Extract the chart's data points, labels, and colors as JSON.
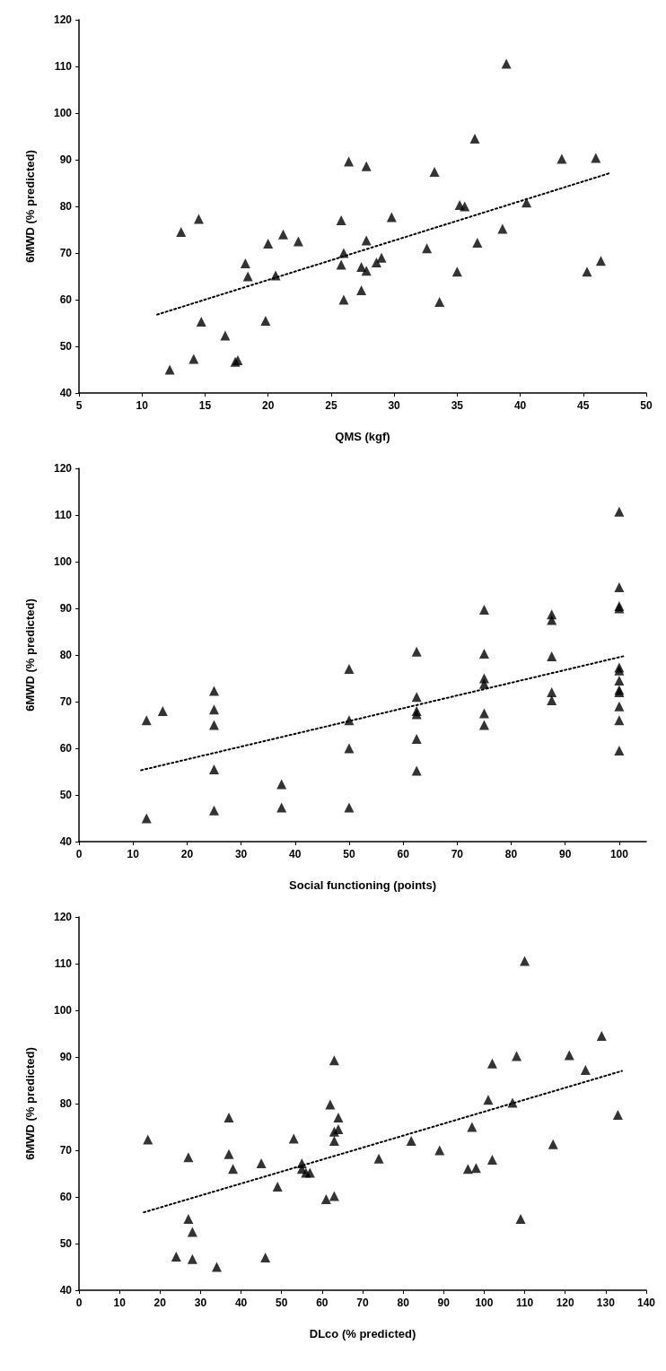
{
  "chart_data": [
    {
      "type": "scatter",
      "xlabel": "QMS (kgf)",
      "ylabel": "6MWD (% predicted)",
      "xlim": [
        5,
        50
      ],
      "xticks": [
        5,
        10,
        15,
        20,
        25,
        30,
        35,
        40,
        45,
        50
      ],
      "ylim": [
        40,
        120
      ],
      "yticks": [
        40,
        50,
        60,
        70,
        80,
        90,
        100,
        110,
        120
      ],
      "grid": false,
      "series": [
        {
          "marker": "triangle",
          "color": "#000000",
          "x": [
            12.2,
            13.1,
            14.1,
            14.5,
            14.7,
            16.6,
            17.4,
            17.6,
            18.2,
            18.4,
            19.8,
            20,
            20.6,
            21.2,
            22.4,
            25.8,
            25.8,
            26,
            26,
            26.4,
            27.4,
            27.4,
            27.8,
            27.8,
            27.8,
            28.6,
            29,
            29.8,
            32.6,
            33.2,
            33.6,
            35,
            35.2,
            35.6,
            36.4,
            36.6,
            38.6,
            38.9,
            40.5,
            43.3,
            45.3,
            46,
            46.4
          ],
          "values": [
            45,
            74.5,
            47.3,
            77.3,
            55.3,
            52.3,
            46.7,
            47,
            67.8,
            65,
            55.5,
            72,
            65.2,
            74,
            72.5,
            77,
            67.5,
            70,
            60,
            89.6,
            67,
            62,
            72.7,
            66.2,
            88.6,
            68,
            69,
            77.7,
            71,
            87.4,
            59.5,
            66,
            80.3,
            80,
            94.5,
            72.2,
            75.2,
            110.6,
            80.8,
            90.2,
            66,
            90.4,
            68.3
          ]
        },
        {
          "type": "line",
          "color": "#000000",
          "line_style": "dotted",
          "x": [
            11.2,
            47.2
          ],
          "values": [
            56.8,
            87.2
          ]
        }
      ]
    },
    {
      "type": "scatter",
      "xlabel": "Social functioning (points)",
      "ylabel": "6MWD (% predicted)",
      "xlim": [
        0,
        105
      ],
      "xticks": [
        0,
        10,
        20,
        30,
        40,
        50,
        60,
        70,
        80,
        90,
        100
      ],
      "ylim": [
        40,
        120
      ],
      "yticks": [
        40,
        50,
        60,
        70,
        80,
        90,
        100,
        110,
        120
      ],
      "grid": false,
      "series": [
        {
          "marker": "triangle",
          "color": "#000000",
          "x": [
            12.5,
            12.5,
            15.5,
            25,
            25,
            25,
            25,
            25,
            37.5,
            37.5,
            50,
            50,
            50,
            50,
            62.5,
            62.5,
            62.5,
            62.5,
            62.5,
            62.5,
            75,
            75,
            75,
            75,
            75,
            75,
            87.5,
            87.5,
            87.5,
            87.5,
            87.5,
            100,
            100,
            100,
            100,
            100,
            100,
            100,
            100,
            100,
            100,
            100,
            100
          ],
          "values": [
            66,
            45,
            68,
            72.3,
            68.3,
            65,
            55.5,
            46.7,
            52.3,
            47.3,
            77,
            66,
            60,
            47.3,
            80.7,
            71,
            68,
            67.3,
            62,
            55.2,
            89.7,
            80.3,
            75,
            73.8,
            67.5,
            65,
            88.7,
            87.5,
            79.7,
            72,
            70.3,
            110.7,
            94.5,
            90.5,
            90,
            77.3,
            76.7,
            74.5,
            72.5,
            72,
            69,
            66,
            59.5
          ]
        },
        {
          "type": "line",
          "color": "#000000",
          "line_style": "dotted",
          "x": [
            11.5,
            101
          ],
          "values": [
            55.3,
            79.8
          ]
        }
      ]
    },
    {
      "type": "scatter",
      "xlabel": "DLco (% predicted)",
      "ylabel": "6MWD (% predicted)",
      "xlim": [
        0,
        140
      ],
      "xticks": [
        0,
        10,
        20,
        30,
        40,
        50,
        60,
        70,
        80,
        90,
        100,
        110,
        120,
        130,
        140
      ],
      "ylim": [
        40,
        120
      ],
      "yticks": [
        40,
        50,
        60,
        70,
        80,
        90,
        100,
        110,
        120
      ],
      "grid": false,
      "series": [
        {
          "marker": "triangle",
          "color": "#000000",
          "x": [
            17,
            24,
            27,
            27,
            28,
            28,
            34,
            37,
            37,
            38,
            45,
            46,
            49,
            53,
            55,
            55,
            56,
            57,
            61,
            62,
            63,
            63,
            63,
            63,
            64,
            64,
            74,
            82,
            89,
            96,
            97,
            98,
            101,
            102,
            102,
            107,
            108,
            109,
            110,
            117,
            121,
            125,
            129,
            133
          ],
          "values": [
            72.3,
            47.2,
            68.5,
            55.3,
            52.5,
            46.7,
            45,
            77,
            69.2,
            66,
            67.2,
            47,
            62.2,
            72.5,
            67.2,
            66,
            65.2,
            65.2,
            59.5,
            79.8,
            89.3,
            74,
            72,
            60.2,
            77,
            74.5,
            68.2,
            72,
            70,
            66,
            75,
            66.2,
            80.8,
            88.6,
            68,
            80.2,
            90.2,
            55.3,
            110.6,
            71.3,
            90.4,
            87.2,
            94.5,
            77.6
          ]
        },
        {
          "type": "line",
          "color": "#000000",
          "line_style": "dotted",
          "x": [
            16,
            134
          ],
          "values": [
            56.7,
            87
          ]
        }
      ]
    }
  ]
}
